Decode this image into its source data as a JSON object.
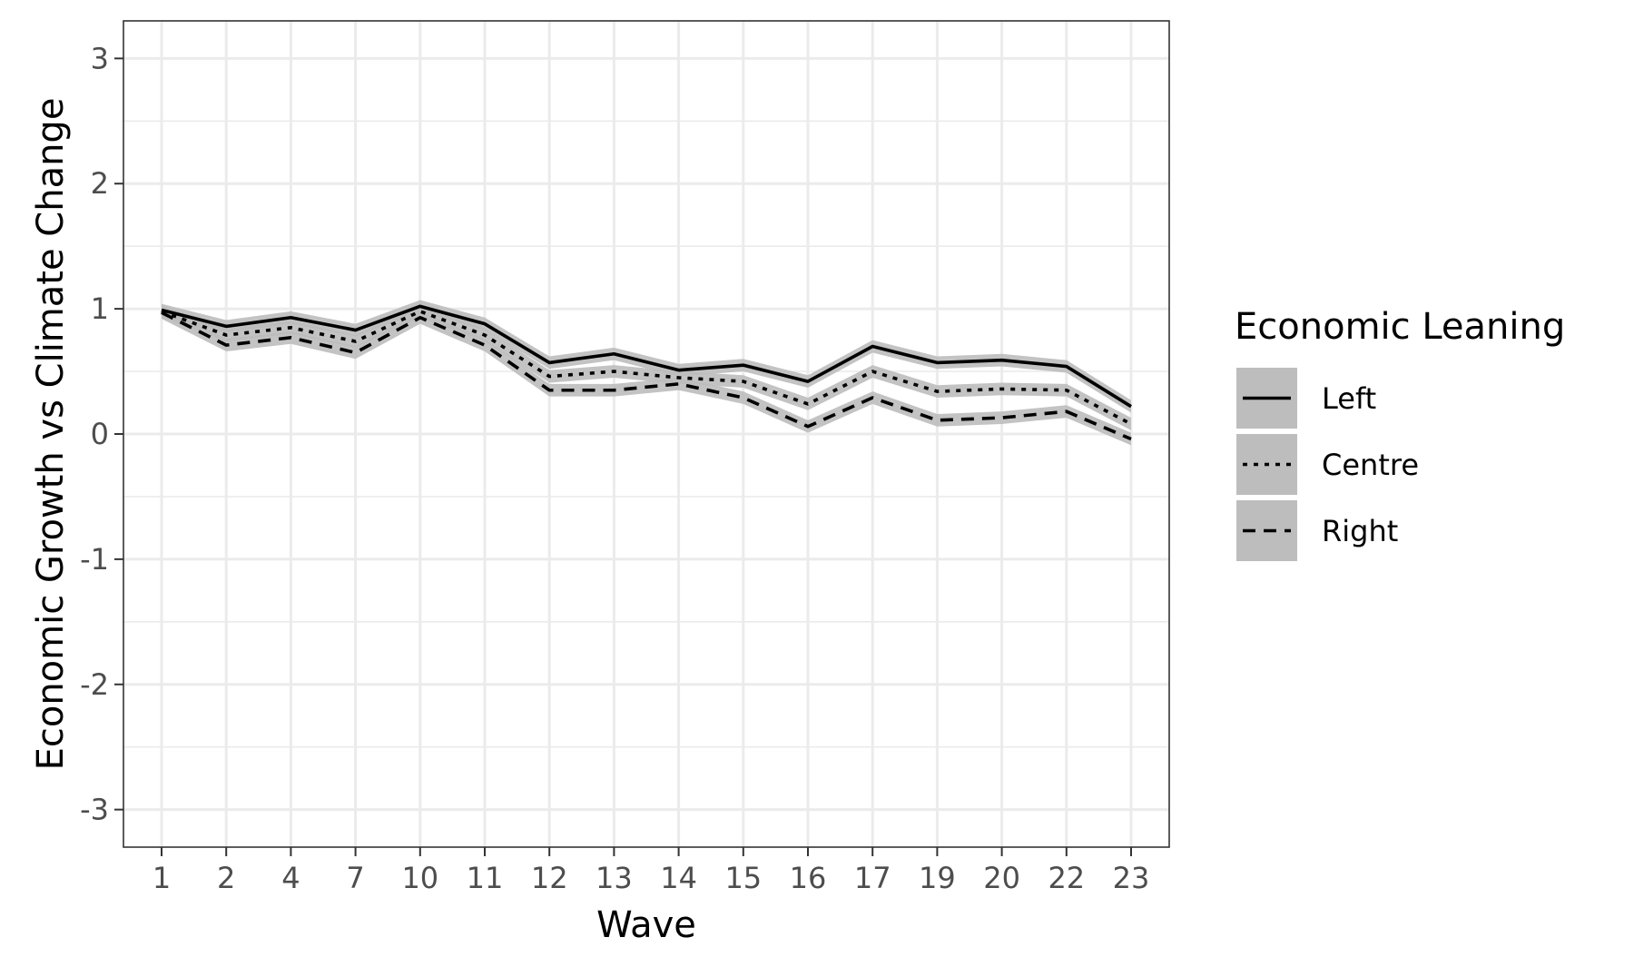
{
  "chart_data": {
    "type": "line",
    "xlabel": "Wave",
    "ylabel": "Economic Growth vs Climate Change",
    "categories": [
      "1",
      "2",
      "4",
      "7",
      "10",
      "11",
      "12",
      "13",
      "14",
      "15",
      "16",
      "17",
      "19",
      "20",
      "22",
      "23"
    ],
    "ylim": [
      -3.3,
      3.3
    ],
    "yticks": [
      -3,
      -2,
      -1,
      0,
      1,
      2,
      3
    ],
    "grid": true,
    "confidence_band": true,
    "legend": {
      "title": "Economic Leaning",
      "position": "right"
    },
    "series": [
      {
        "name": "Left",
        "linetype": "solid",
        "values": [
          0.99,
          0.86,
          0.93,
          0.83,
          1.02,
          0.88,
          0.57,
          0.64,
          0.51,
          0.55,
          0.42,
          0.7,
          0.57,
          0.59,
          0.54,
          0.22
        ]
      },
      {
        "name": "Centre",
        "linetype": "dotted",
        "values": [
          0.98,
          0.79,
          0.85,
          0.74,
          0.98,
          0.79,
          0.46,
          0.5,
          0.45,
          0.42,
          0.24,
          0.5,
          0.34,
          0.36,
          0.35,
          0.08
        ]
      },
      {
        "name": "Right",
        "linetype": "dashed",
        "values": [
          0.97,
          0.71,
          0.77,
          0.65,
          0.93,
          0.71,
          0.35,
          0.35,
          0.4,
          0.29,
          0.06,
          0.29,
          0.11,
          0.13,
          0.18,
          -0.04
        ]
      }
    ]
  },
  "colors": {
    "line": "#000000",
    "band": "#bdbdbd",
    "grid": "#ebebeb",
    "panel_border": "#333333",
    "tick_text": "#4d4d4d"
  }
}
